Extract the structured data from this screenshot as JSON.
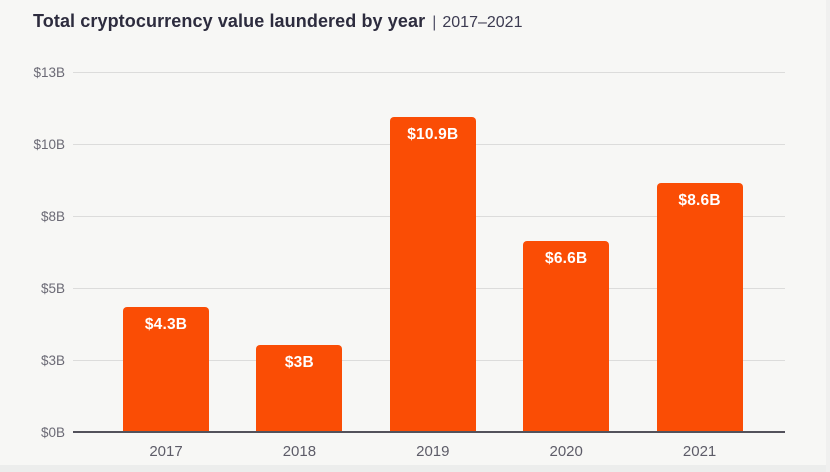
{
  "header": {
    "title": "Total cryptocurrency value laundered by year",
    "separator": "|",
    "period": "2017–2021"
  },
  "chart_data": {
    "type": "bar",
    "title": "Total cryptocurrency value laundered by year | 2017–2021",
    "categories": [
      "2017",
      "2018",
      "2019",
      "2020",
      "2021"
    ],
    "values": [
      4.3,
      3,
      10.9,
      6.6,
      8.6
    ],
    "bar_labels": [
      "$4.3B",
      "$3B",
      "$10.9B",
      "$6.6B",
      "$8.6B"
    ],
    "xlabel": "",
    "ylabel": "",
    "yticks": [
      {
        "value": 0,
        "label": "$0B"
      },
      {
        "value": 3,
        "label": "$3B"
      },
      {
        "value": 5,
        "label": "$5B"
      },
      {
        "value": 8,
        "label": "$8B"
      },
      {
        "value": 10,
        "label": "$10B"
      },
      {
        "value": 13,
        "label": "$13B"
      }
    ],
    "ylim": [
      0,
      13
    ],
    "grid": "horizontal",
    "legend": "none",
    "colors": {
      "bar": "#FA4D05",
      "bar_label": "#FFFFFF",
      "background": "#F7F7F5",
      "gridline": "#DCDCDB",
      "baseline": "#53525B",
      "title": "#2D2C3E",
      "axis_tick": "#6B6A75",
      "category_label": "#5D5C68"
    }
  }
}
